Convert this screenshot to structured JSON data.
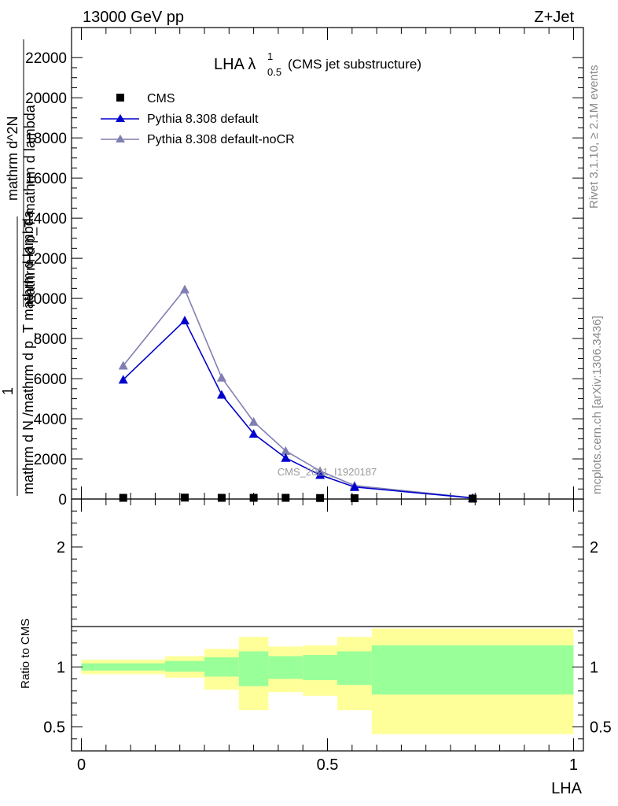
{
  "header": {
    "left": "13000 GeV pp",
    "right": "Z+Jet"
  },
  "side_labels": {
    "rivet": "Rivet 3.1.10, ≥ 2.1M events",
    "mcplots": "mcplots.cern.ch [arXiv:1306.3436]"
  },
  "plot_title": {
    "main": "LHA λ",
    "superscript": "1",
    "subscript": "0.5",
    "suffix": "(CMS jet substructure)"
  },
  "watermark": "CMS_2021_I1920187",
  "main_ylabel": {
    "numerator": "1",
    "denominator_line1": "mathrm d N /mathrm d p_T mathrm d lambda",
    "top_line1": "mathrm d^2N",
    "top_line2": "mathrm d p_T mathrm d lambda"
  },
  "ratio_ylabel": "Ratio to CMS",
  "xlabel": "LHA",
  "colors": {
    "cms": "#000000",
    "default": "#0000cc",
    "noCR": "#7f7fb2",
    "band_inner": "#99ff99",
    "band_outer": "#ffff99"
  },
  "chart_data": [
    {
      "type": "line",
      "panel": "main",
      "xlim": [
        -0.02,
        1.02
      ],
      "ylim": [
        0,
        23500
      ],
      "yticks": [
        {
          "value": 2000,
          "label": "2000"
        },
        {
          "value": 4000,
          "label": "4000"
        },
        {
          "value": 6000,
          "label": "6000"
        },
        {
          "value": 8000,
          "label": "8000"
        },
        {
          "value": 10000,
          "label": "10000"
        },
        {
          "value": 12000,
          "label": "12000"
        },
        {
          "value": 14000,
          "label": "14000"
        },
        {
          "value": 16000,
          "label": "16000"
        },
        {
          "value": 18000,
          "label": "18000"
        },
        {
          "value": 20000,
          "label": "20000"
        },
        {
          "value": 22000,
          "label": "22000"
        }
      ],
      "bin_edges": [
        0,
        0.17,
        0.25,
        0.32,
        0.38,
        0.45,
        0.52,
        0.59,
        1.0
      ],
      "legend_position": "top-left",
      "series": [
        {
          "name": "CMS",
          "marker": "square",
          "x": [
            0.085,
            0.21,
            0.285,
            0.35,
            0.415,
            0.485,
            0.555,
            0.795
          ],
          "y": [
            60,
            70,
            60,
            60,
            60,
            50,
            40,
            20
          ]
        },
        {
          "name": "Pythia 8.308 default",
          "marker": "triangle",
          "x": [
            0.085,
            0.21,
            0.285,
            0.35,
            0.415,
            0.485,
            0.555,
            0.795
          ],
          "y": [
            5950,
            8900,
            5200,
            3250,
            2050,
            1200,
            600,
            50
          ]
        },
        {
          "name": "Pythia 8.308 default-noCR",
          "marker": "triangle",
          "x": [
            0.085,
            0.21,
            0.285,
            0.35,
            0.415,
            0.485,
            0.555,
            0.795
          ],
          "y": [
            6650,
            10450,
            6050,
            3850,
            2400,
            1400,
            670,
            60
          ]
        }
      ]
    },
    {
      "type": "area",
      "panel": "ratio",
      "xlim": [
        -0.02,
        1.02
      ],
      "ylim": [
        0.3,
        2.4
      ],
      "yticks": [
        {
          "value": 0.5,
          "label": "0.5"
        },
        {
          "value": 1,
          "label": "1"
        },
        {
          "value": 2,
          "label": "2"
        }
      ],
      "xticks": [
        {
          "value": 0,
          "label": "0"
        },
        {
          "value": 0.5,
          "label": "0.5"
        },
        {
          "value": 1,
          "label": "1"
        }
      ],
      "bins": [
        {
          "lo": 0.0,
          "hi": 0.17,
          "inner": [
            0.97,
            1.03
          ],
          "outer": [
            0.94,
            1.06
          ]
        },
        {
          "lo": 0.17,
          "hi": 0.25,
          "inner": [
            0.96,
            1.05
          ],
          "outer": [
            0.91,
            1.09
          ]
        },
        {
          "lo": 0.25,
          "hi": 0.32,
          "inner": [
            0.92,
            1.08
          ],
          "outer": [
            0.81,
            1.15
          ]
        },
        {
          "lo": 0.32,
          "hi": 0.38,
          "inner": [
            0.84,
            1.13
          ],
          "outer": [
            0.64,
            1.25
          ]
        },
        {
          "lo": 0.38,
          "hi": 0.45,
          "inner": [
            0.9,
            1.09
          ],
          "outer": [
            0.79,
            1.17
          ]
        },
        {
          "lo": 0.45,
          "hi": 0.52,
          "inner": [
            0.89,
            1.1
          ],
          "outer": [
            0.76,
            1.18
          ]
        },
        {
          "lo": 0.52,
          "hi": 0.59,
          "inner": [
            0.85,
            1.13
          ],
          "outer": [
            0.64,
            1.25
          ]
        },
        {
          "lo": 0.59,
          "hi": 1.0,
          "inner": [
            0.77,
            1.18
          ],
          "outer": [
            0.44,
            1.32
          ]
        }
      ]
    }
  ]
}
